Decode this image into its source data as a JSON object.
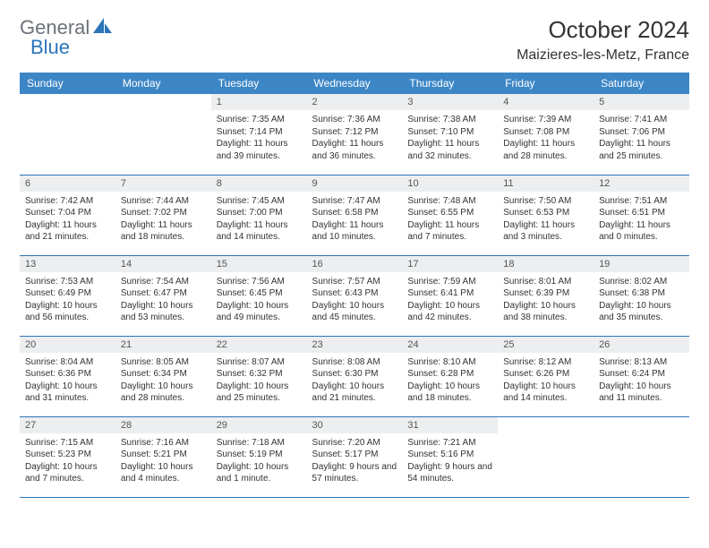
{
  "brand": {
    "name1": "General",
    "name2": "Blue",
    "color1": "#6d7178",
    "color2": "#2c74bb"
  },
  "title": "October 2024",
  "location": "Maizieres-les-Metz, France",
  "header_bg": "#3d86c6",
  "header_fg": "#ffffff",
  "daynum_bg": "#eceeef",
  "rule_color": "#2c74bb",
  "weekdays": [
    "Sunday",
    "Monday",
    "Tuesday",
    "Wednesday",
    "Thursday",
    "Friday",
    "Saturday"
  ],
  "weeks": [
    [
      null,
      null,
      {
        "n": "1",
        "sunrise": "7:35 AM",
        "sunset": "7:14 PM",
        "dl": "11 hours and 39 minutes."
      },
      {
        "n": "2",
        "sunrise": "7:36 AM",
        "sunset": "7:12 PM",
        "dl": "11 hours and 36 minutes."
      },
      {
        "n": "3",
        "sunrise": "7:38 AM",
        "sunset": "7:10 PM",
        "dl": "11 hours and 32 minutes."
      },
      {
        "n": "4",
        "sunrise": "7:39 AM",
        "sunset": "7:08 PM",
        "dl": "11 hours and 28 minutes."
      },
      {
        "n": "5",
        "sunrise": "7:41 AM",
        "sunset": "7:06 PM",
        "dl": "11 hours and 25 minutes."
      }
    ],
    [
      {
        "n": "6",
        "sunrise": "7:42 AM",
        "sunset": "7:04 PM",
        "dl": "11 hours and 21 minutes."
      },
      {
        "n": "7",
        "sunrise": "7:44 AM",
        "sunset": "7:02 PM",
        "dl": "11 hours and 18 minutes."
      },
      {
        "n": "8",
        "sunrise": "7:45 AM",
        "sunset": "7:00 PM",
        "dl": "11 hours and 14 minutes."
      },
      {
        "n": "9",
        "sunrise": "7:47 AM",
        "sunset": "6:58 PM",
        "dl": "11 hours and 10 minutes."
      },
      {
        "n": "10",
        "sunrise": "7:48 AM",
        "sunset": "6:55 PM",
        "dl": "11 hours and 7 minutes."
      },
      {
        "n": "11",
        "sunrise": "7:50 AM",
        "sunset": "6:53 PM",
        "dl": "11 hours and 3 minutes."
      },
      {
        "n": "12",
        "sunrise": "7:51 AM",
        "sunset": "6:51 PM",
        "dl": "11 hours and 0 minutes."
      }
    ],
    [
      {
        "n": "13",
        "sunrise": "7:53 AM",
        "sunset": "6:49 PM",
        "dl": "10 hours and 56 minutes."
      },
      {
        "n": "14",
        "sunrise": "7:54 AM",
        "sunset": "6:47 PM",
        "dl": "10 hours and 53 minutes."
      },
      {
        "n": "15",
        "sunrise": "7:56 AM",
        "sunset": "6:45 PM",
        "dl": "10 hours and 49 minutes."
      },
      {
        "n": "16",
        "sunrise": "7:57 AM",
        "sunset": "6:43 PM",
        "dl": "10 hours and 45 minutes."
      },
      {
        "n": "17",
        "sunrise": "7:59 AM",
        "sunset": "6:41 PM",
        "dl": "10 hours and 42 minutes."
      },
      {
        "n": "18",
        "sunrise": "8:01 AM",
        "sunset": "6:39 PM",
        "dl": "10 hours and 38 minutes."
      },
      {
        "n": "19",
        "sunrise": "8:02 AM",
        "sunset": "6:38 PM",
        "dl": "10 hours and 35 minutes."
      }
    ],
    [
      {
        "n": "20",
        "sunrise": "8:04 AM",
        "sunset": "6:36 PM",
        "dl": "10 hours and 31 minutes."
      },
      {
        "n": "21",
        "sunrise": "8:05 AM",
        "sunset": "6:34 PM",
        "dl": "10 hours and 28 minutes."
      },
      {
        "n": "22",
        "sunrise": "8:07 AM",
        "sunset": "6:32 PM",
        "dl": "10 hours and 25 minutes."
      },
      {
        "n": "23",
        "sunrise": "8:08 AM",
        "sunset": "6:30 PM",
        "dl": "10 hours and 21 minutes."
      },
      {
        "n": "24",
        "sunrise": "8:10 AM",
        "sunset": "6:28 PM",
        "dl": "10 hours and 18 minutes."
      },
      {
        "n": "25",
        "sunrise": "8:12 AM",
        "sunset": "6:26 PM",
        "dl": "10 hours and 14 minutes."
      },
      {
        "n": "26",
        "sunrise": "8:13 AM",
        "sunset": "6:24 PM",
        "dl": "10 hours and 11 minutes."
      }
    ],
    [
      {
        "n": "27",
        "sunrise": "7:15 AM",
        "sunset": "5:23 PM",
        "dl": "10 hours and 7 minutes."
      },
      {
        "n": "28",
        "sunrise": "7:16 AM",
        "sunset": "5:21 PM",
        "dl": "10 hours and 4 minutes."
      },
      {
        "n": "29",
        "sunrise": "7:18 AM",
        "sunset": "5:19 PM",
        "dl": "10 hours and 1 minute."
      },
      {
        "n": "30",
        "sunrise": "7:20 AM",
        "sunset": "5:17 PM",
        "dl": "9 hours and 57 minutes."
      },
      {
        "n": "31",
        "sunrise": "7:21 AM",
        "sunset": "5:16 PM",
        "dl": "9 hours and 54 minutes."
      },
      null,
      null
    ]
  ],
  "labels": {
    "sunrise": "Sunrise:",
    "sunset": "Sunset:",
    "daylight": "Daylight:"
  }
}
